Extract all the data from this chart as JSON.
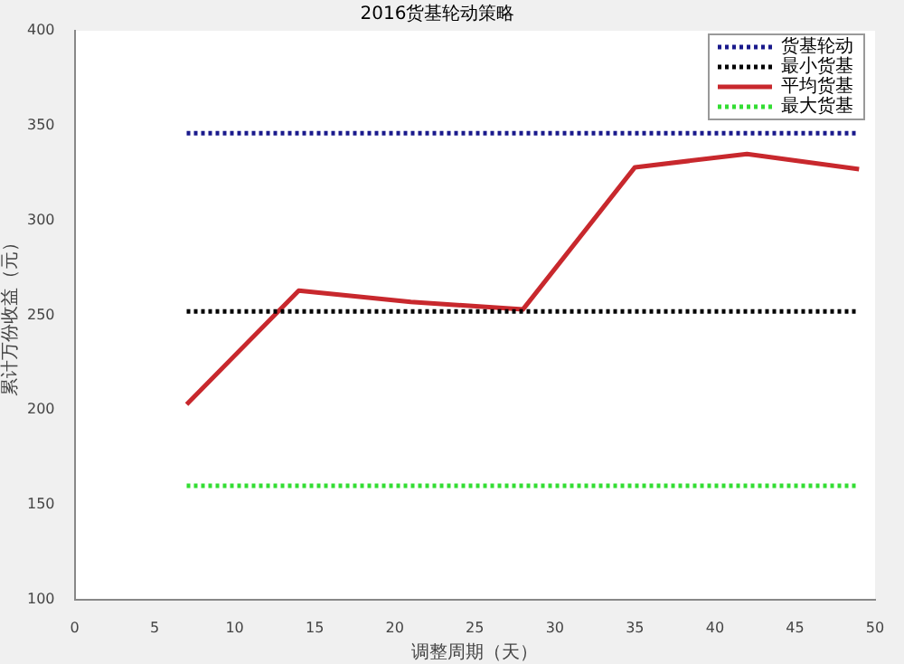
{
  "chart_data": {
    "type": "line",
    "title": "2016货基轮动策略",
    "xlabel": "调整周期（天）",
    "ylabel": "累计万份收益（元）",
    "x": [
      7,
      14,
      21,
      28,
      35,
      42,
      49
    ],
    "series": [
      {
        "name": "货基轮动",
        "color": "#1a1a8c",
        "values": [
          346,
          346,
          346,
          346,
          346,
          346,
          346
        ],
        "line_style": "dotted"
      },
      {
        "name": "最小货基",
        "color": "#000000",
        "values": [
          252,
          252,
          252,
          252,
          252,
          252,
          252
        ],
        "line_style": "dotted"
      },
      {
        "name": "平均货基",
        "color": "#c8282d",
        "values": [
          203,
          263,
          257,
          253,
          328,
          335,
          327
        ],
        "line_style": "solid"
      },
      {
        "name": "最大货基",
        "color": "#33dd33",
        "values": [
          160,
          160,
          160,
          160,
          160,
          160,
          160
        ],
        "line_style": "dotted"
      }
    ],
    "xlim": [
      0,
      50
    ],
    "xticks": [
      0,
      5,
      10,
      15,
      20,
      25,
      30,
      35,
      40,
      45,
      50
    ],
    "ylim": [
      100,
      400
    ],
    "yticks": [
      100,
      150,
      200,
      250,
      300,
      350,
      400
    ],
    "grid": false,
    "legend": "top right",
    "marker": "none"
  }
}
